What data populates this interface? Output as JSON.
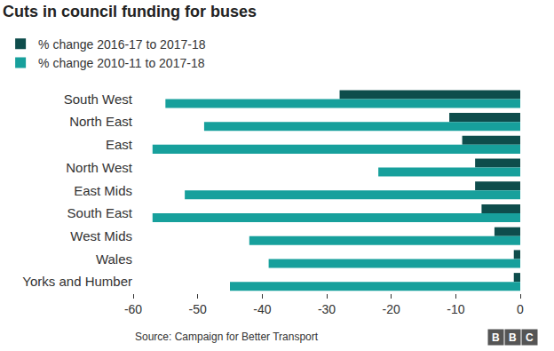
{
  "chart_data": {
    "type": "bar",
    "orientation": "horizontal",
    "title": "Cuts in council funding for buses",
    "categories": [
      "South West",
      "North East",
      "East",
      "North West",
      "East Mids",
      "South East",
      "West Mids",
      "Wales",
      "Yorks and Humber"
    ],
    "series": [
      {
        "name": "% change 2016-17 to 2017-18",
        "color": "#0e4d4c",
        "values": [
          -28,
          -11,
          -9,
          -7,
          -7,
          -6,
          -4,
          -1,
          -1
        ]
      },
      {
        "name": "% change 2010-11 to 2017-18",
        "color": "#17a09c",
        "values": [
          -55,
          -49,
          -57,
          -22,
          -52,
          -57,
          -42,
          -39,
          -45
        ]
      }
    ],
    "xlim": [
      -60,
      0
    ],
    "xticks": [
      -60,
      -50,
      -40,
      -30,
      -20,
      -10,
      0
    ],
    "grid": false,
    "legend": "top left",
    "source": "Source: Campaign for Better Transport",
    "logo": "BBC"
  }
}
